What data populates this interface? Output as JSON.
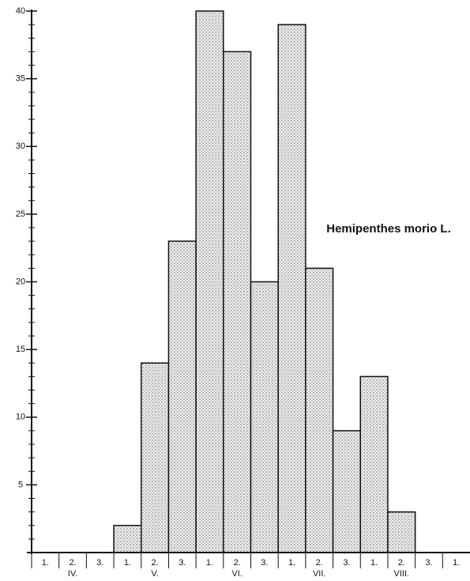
{
  "chart_data": {
    "type": "bar",
    "title": "Hemipenthes morio L.",
    "categories": [
      "1.",
      "2.",
      "3.",
      "1.",
      "2.",
      "3.",
      "1.",
      "2.",
      "3.",
      "1.",
      "2.",
      "3.",
      "1.",
      "2.",
      "3.",
      "1."
    ],
    "month_labels": [
      "IV.",
      "V.",
      "VI.",
      "VII.",
      "VIII."
    ],
    "values": [
      0,
      0,
      0,
      2,
      14,
      23,
      40,
      37,
      20,
      39,
      21,
      9,
      13,
      3,
      0,
      0
    ],
    "color": "#e4e4e4",
    "ylim": [
      0,
      40
    ],
    "yticks": [
      5,
      10,
      15,
      20,
      25,
      30,
      35,
      40
    ],
    "grid": false
  }
}
